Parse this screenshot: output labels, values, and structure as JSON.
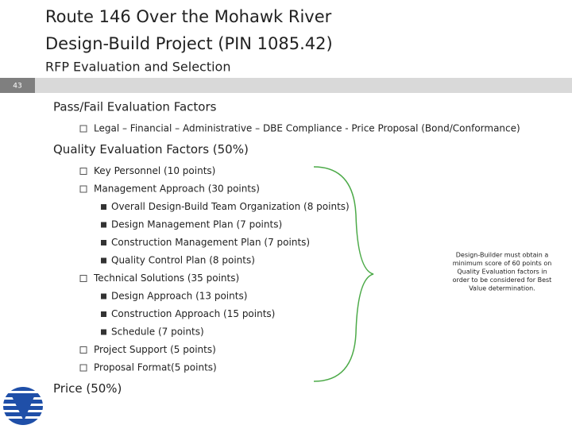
{
  "header": {
    "title_lines": [
      "Route 146 Over the Mohawk River",
      "Design-Build Project (PIN 1085.42)"
    ],
    "subtitle": "RFP Evaluation and Selection",
    "slide_number": "43"
  },
  "sections": [
    {
      "heading": "Pass/Fail Evaluation Factors",
      "items": [
        {
          "text": "Legal – Financial – Administrative – DBE Compliance - Price Proposal (Bond/Conformance)",
          "subitems": []
        }
      ]
    },
    {
      "heading": "Quality Evaluation Factors (50%)",
      "items": [
        {
          "text": "Key Personnel (10 points)",
          "subitems": []
        },
        {
          "text": "Management  Approach (30 points)",
          "subitems": [
            "Overall Design-Build Team Organization (8 points)",
            "Design Management Plan  (7 points)",
            "Construction Management Plan (7 points)",
            "Quality Control Plan (8 points)"
          ]
        },
        {
          "text": "Technical Solutions (35 points)",
          "subitems": [
            "Design Approach (13 points)",
            "Construction Approach (15 points)",
            "Schedule (7 points)"
          ]
        },
        {
          "text": "Project Support (5 points)",
          "subitems": []
        },
        {
          "text": "Proposal Format(5 points)",
          "subitems": []
        }
      ]
    },
    {
      "heading": "Price (50%)",
      "items": []
    }
  ],
  "note": {
    "lines": [
      "Design-Builder must obtain a",
      "minimum score of 60 points on",
      "Quality Evaluation factors in",
      "order to be considered for Best",
      "Value determination."
    ]
  }
}
